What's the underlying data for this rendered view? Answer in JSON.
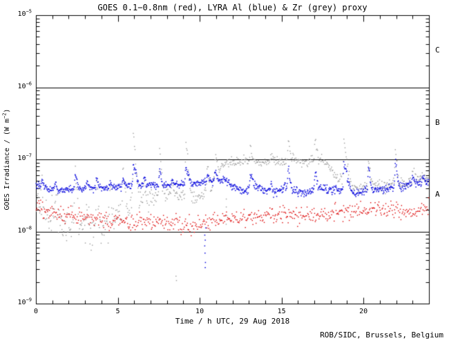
{
  "footer": {
    "credit": "ROB/SIDC, Brussels, Belgium"
  },
  "chart_data": {
    "type": "scatter",
    "title": "GOES 0.1−0.8nm (red), LYRA Al (blue) & Zr (grey) proxy",
    "xlabel": "Time / h UTC, 29 Aug 2018",
    "ylabel": "GOES Irradiance / (W m⁻²)",
    "ylabel_parts": {
      "pre": "GOES Irradiance / (W m",
      "sup": "−2",
      "post": ")"
    },
    "x_range": [
      0,
      24
    ],
    "x_major_ticks": [
      0,
      5,
      10,
      15,
      20
    ],
    "x_minor_step": 1,
    "y_log_range": [
      -9,
      -5
    ],
    "y_tick_labels": [
      {
        "base": "10",
        "exp": "−5",
        "log": -5
      },
      {
        "base": "10",
        "exp": "−6",
        "log": -6
      },
      {
        "base": "10",
        "exp": "−7",
        "log": -7
      },
      {
        "base": "10",
        "exp": "−8",
        "log": -8
      },
      {
        "base": "10",
        "exp": "−9",
        "log": -9
      }
    ],
    "hlines_log": [
      -6,
      -7,
      -8
    ],
    "class_labels": [
      {
        "label": "C",
        "log_y": -5.5
      },
      {
        "label": "B",
        "log_y": -6.5
      },
      {
        "label": "A",
        "log_y": -7.5
      }
    ],
    "axis_color": "#000000",
    "background": "#ffffff",
    "grid": false,
    "legend_position": "encoded-in-title",
    "series": [
      {
        "name": "LYRA Zr proxy",
        "key": "grey",
        "color": "#999999",
        "points_per_hour": 28,
        "dot_size": 1.4,
        "trend_log": [
          [
            0,
            -7.56
          ],
          [
            0.5,
            -7.68
          ],
          [
            1,
            -7.82
          ],
          [
            1.7,
            -7.94
          ],
          [
            2.3,
            -7.88
          ],
          [
            3,
            -7.95
          ],
          [
            3.6,
            -8.0
          ],
          [
            4.2,
            -7.92
          ],
          [
            4.8,
            -7.82
          ],
          [
            5.4,
            -7.7
          ],
          [
            6,
            -7.58
          ],
          [
            6.6,
            -7.62
          ],
          [
            7.2,
            -7.5
          ],
          [
            7.8,
            -7.45
          ],
          [
            8.4,
            -7.52
          ],
          [
            9,
            -7.5
          ],
          [
            9.6,
            -7.55
          ],
          [
            10.2,
            -7.48
          ],
          [
            10.7,
            -7.38
          ],
          [
            11.2,
            -7.12
          ],
          [
            11.7,
            -7.04
          ],
          [
            12.5,
            -7.04
          ],
          [
            13,
            -7.0
          ],
          [
            13.7,
            -7.06
          ],
          [
            14.3,
            -7.02
          ],
          [
            15,
            -7.04
          ],
          [
            15.7,
            -7.0
          ],
          [
            16.3,
            -7.04
          ],
          [
            17,
            -6.99
          ],
          [
            17.5,
            -7.02
          ],
          [
            18,
            -7.12
          ],
          [
            18.5,
            -7.28
          ],
          [
            19.2,
            -7.36
          ],
          [
            19.8,
            -7.42
          ],
          [
            20.5,
            -7.33
          ],
          [
            21.2,
            -7.38
          ],
          [
            21.9,
            -7.3
          ],
          [
            22.5,
            -7.34
          ],
          [
            23.2,
            -7.28
          ],
          [
            24,
            -7.28
          ]
        ],
        "noise_profile": [
          [
            0,
            0.13
          ],
          [
            2,
            0.14
          ],
          [
            4,
            0.12
          ],
          [
            6,
            0.08
          ],
          [
            8,
            0.05
          ],
          [
            10,
            0.045
          ],
          [
            11.5,
            0.035
          ],
          [
            17,
            0.035
          ],
          [
            18.5,
            0.04
          ],
          [
            24,
            0.04
          ]
        ]
      },
      {
        "name": "GOES 0.1−0.8nm",
        "key": "red",
        "color": "#dd0000",
        "points_per_hour": 26,
        "dot_size": 1.4,
        "trend_log": [
          [
            0,
            -7.68
          ],
          [
            1,
            -7.74
          ],
          [
            2,
            -7.78
          ],
          [
            3,
            -7.8
          ],
          [
            4,
            -7.84
          ],
          [
            5,
            -7.87
          ],
          [
            6,
            -7.88
          ],
          [
            7,
            -7.85
          ],
          [
            8,
            -7.88
          ],
          [
            9,
            -7.9
          ],
          [
            10,
            -7.88
          ],
          [
            11,
            -7.85
          ],
          [
            12,
            -7.82
          ],
          [
            13,
            -7.8
          ],
          [
            14,
            -7.78
          ],
          [
            15,
            -7.76
          ],
          [
            16,
            -7.78
          ],
          [
            17,
            -7.76
          ],
          [
            18,
            -7.74
          ],
          [
            19,
            -7.72
          ],
          [
            20,
            -7.7
          ],
          [
            21,
            -7.68
          ],
          [
            22,
            -7.7
          ],
          [
            23,
            -7.72
          ],
          [
            24,
            -7.7
          ]
        ],
        "noise_profile": [
          [
            0,
            0.06
          ],
          [
            24,
            0.06
          ]
        ]
      },
      {
        "name": "LYRA Al proxy",
        "key": "blue",
        "color": "#0000dd",
        "points_per_hour": 42,
        "dot_size": 1.5,
        "trend_log": [
          [
            0,
            -7.36
          ],
          [
            0.7,
            -7.4
          ],
          [
            1.5,
            -7.43
          ],
          [
            2.2,
            -7.41
          ],
          [
            3,
            -7.4
          ],
          [
            4,
            -7.4
          ],
          [
            5,
            -7.38
          ],
          [
            6,
            -7.37
          ],
          [
            7,
            -7.36
          ],
          [
            8,
            -7.36
          ],
          [
            9,
            -7.34
          ],
          [
            10,
            -7.33
          ],
          [
            10.8,
            -7.3
          ],
          [
            11.5,
            -7.28
          ],
          [
            12.2,
            -7.38
          ],
          [
            12.8,
            -7.45
          ],
          [
            13.3,
            -7.36
          ],
          [
            14,
            -7.43
          ],
          [
            14.6,
            -7.47
          ],
          [
            15.2,
            -7.38
          ],
          [
            15.9,
            -7.44
          ],
          [
            16.5,
            -7.47
          ],
          [
            17.2,
            -7.4
          ],
          [
            17.8,
            -7.42
          ],
          [
            18.4,
            -7.42
          ],
          [
            19,
            -7.42
          ],
          [
            19.6,
            -7.46
          ],
          [
            20.1,
            -7.42
          ],
          [
            20.8,
            -7.42
          ],
          [
            21.4,
            -7.42
          ],
          [
            22,
            -7.38
          ],
          [
            22.6,
            -7.36
          ],
          [
            23.2,
            -7.34
          ],
          [
            24,
            -7.32
          ]
        ],
        "noise_profile": [
          [
            0,
            0.022
          ],
          [
            11,
            0.024
          ],
          [
            12,
            0.03
          ],
          [
            22,
            0.028
          ],
          [
            24,
            0.024
          ]
        ]
      }
    ],
    "spikes": [
      {
        "t": 0.35,
        "amp": {
          "grey": 0.22,
          "blue": 0.09
        }
      },
      {
        "t": 1.15,
        "amp": {
          "grey": 0.28,
          "blue": 0.1
        }
      },
      {
        "t": 2.4,
        "amp": {
          "grey": 0.8,
          "blue": 0.22
        }
      },
      {
        "t": 3.1,
        "amp": {
          "grey": 0.35,
          "blue": 0.08
        }
      },
      {
        "t": 3.7,
        "amp": {
          "grey": 0.72,
          "blue": 0.12
        }
      },
      {
        "t": 4.5,
        "amp": {
          "grey": 0.3,
          "blue": 0.06
        }
      },
      {
        "t": 5.3,
        "amp": {
          "grey": 0.5,
          "blue": 0.1
        }
      },
      {
        "t": 5.95,
        "amp": {
          "grey": 0.85,
          "blue": 0.27
        },
        "decay": 0.22
      },
      {
        "t": 6.6,
        "amp": {
          "grey": 0.25,
          "blue": 0.08
        }
      },
      {
        "t": 7.55,
        "amp": {
          "grey": 0.55,
          "blue": 0.2
        }
      },
      {
        "t": 8.3,
        "amp": {
          "grey": 0.2,
          "blue": 0.06
        }
      },
      {
        "t": 9.15,
        "amp": {
          "grey": 0.75,
          "blue": 0.22
        },
        "decay": 0.2
      },
      {
        "t": 10.45,
        "amp": {
          "grey": 0.3,
          "blue": 0.1
        }
      },
      {
        "t": 10.95,
        "amp": {
          "grey": 0.3,
          "blue": 0.12
        }
      },
      {
        "t": 13.1,
        "amp": {
          "grey": 0.21,
          "blue": 0.18
        }
      },
      {
        "t": 14.35,
        "amp": {
          "grey": 0.12,
          "blue": 0.1
        }
      },
      {
        "t": 15.4,
        "amp": {
          "grey": 0.27,
          "blue": 0.28
        }
      },
      {
        "t": 17.05,
        "amp": {
          "grey": 0.3,
          "blue": 0.25
        }
      },
      {
        "t": 18.8,
        "amp": {
          "grey": 0.55,
          "blue": 0.35
        },
        "decay": 0.25
      },
      {
        "t": 20.3,
        "amp": {
          "grey": 0.3,
          "blue": 0.3
        }
      },
      {
        "t": 21.95,
        "amp": {
          "grey": 0.4,
          "blue": 0.33
        }
      },
      {
        "t": 23.0,
        "amp": {
          "grey": 0.12,
          "blue": 0.12
        }
      },
      {
        "t": 23.6,
        "amp": {
          "grey": 0.1,
          "blue": 0.09
        }
      }
    ],
    "outliers": [
      {
        "series": "blue",
        "t": 10.34,
        "log_values": [
          -7.95,
          -8.05,
          -8.12,
          -8.2,
          -8.3,
          -8.43,
          -8.5
        ]
      },
      {
        "series": "grey",
        "t": 8.57,
        "log_values": [
          -8.62,
          -8.68
        ]
      },
      {
        "series": "grey",
        "t": 11.62,
        "log_values": [
          -7.55,
          -7.66,
          -7.78,
          -7.9
        ]
      }
    ]
  }
}
